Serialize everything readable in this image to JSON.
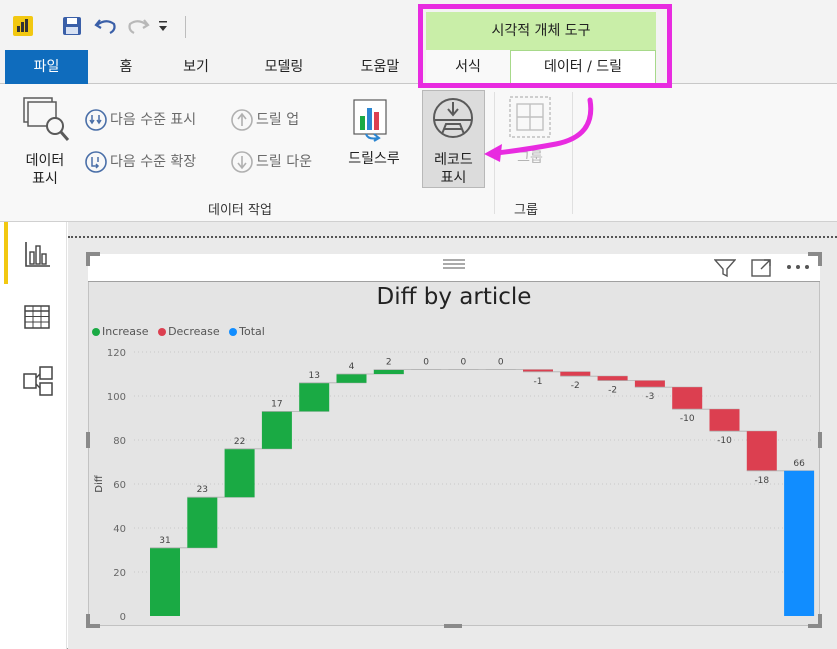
{
  "ribbon_tabs": {
    "file": "파일",
    "home": "홈",
    "view": "보기",
    "modeling": "모델링",
    "help": "도움말"
  },
  "visual_tools": {
    "header": "시각적 개체 도구",
    "format_tab": "서식",
    "data_drill_tab": "데이터 / 드릴"
  },
  "ribbon": {
    "see_data": "데이터\n표시",
    "show_next_level": "다음 수준 표시",
    "expand_next_level": "다음 수준 확장",
    "drill_up": "드릴 업",
    "drill_down": "드릴 다운",
    "drillthrough": "드릴스루",
    "see_records": "레코드\n표시",
    "group_button": "그룹",
    "data_actions_label": "데이터 작업",
    "group_label": "그룹"
  },
  "colors": {
    "increase": "#1aaa44",
    "decrease": "#dc3f50",
    "total": "#118dff",
    "highlight": "#e82be0"
  },
  "chart_data": {
    "type": "waterfall",
    "title": "Diff by article",
    "ylabel": "Diff",
    "ylim": [
      0,
      120
    ],
    "yticks": [
      0,
      20,
      40,
      60,
      80,
      100,
      120
    ],
    "legend": [
      {
        "name": "Increase",
        "color": "#1aaa44"
      },
      {
        "name": "Decrease",
        "color": "#dc3f50"
      },
      {
        "name": "Total",
        "color": "#118dff"
      }
    ],
    "values": [
      31,
      23,
      22,
      17,
      13,
      4,
      2,
      0,
      0,
      0,
      -1,
      -2,
      -2,
      -3,
      -10,
      -10,
      -18
    ],
    "labels": [
      "31",
      "23",
      "22",
      "17",
      "13",
      "4",
      "2",
      "0",
      "0",
      "0",
      "-1",
      "-2",
      "-2",
      "-3",
      "-10",
      "-10",
      "-18"
    ],
    "total": 66,
    "total_label": "66"
  }
}
